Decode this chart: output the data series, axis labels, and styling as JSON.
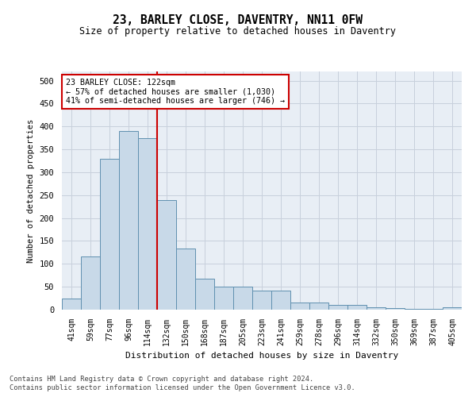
{
  "title1": "23, BARLEY CLOSE, DAVENTRY, NN11 0FW",
  "title2": "Size of property relative to detached houses in Daventry",
  "xlabel": "Distribution of detached houses by size in Daventry",
  "ylabel": "Number of detached properties",
  "categories": [
    "41sqm",
    "59sqm",
    "77sqm",
    "96sqm",
    "114sqm",
    "132sqm",
    "150sqm",
    "168sqm",
    "187sqm",
    "205sqm",
    "223sqm",
    "241sqm",
    "259sqm",
    "278sqm",
    "296sqm",
    "314sqm",
    "332sqm",
    "350sqm",
    "369sqm",
    "387sqm",
    "405sqm"
  ],
  "values": [
    25,
    117,
    330,
    390,
    375,
    240,
    133,
    68,
    50,
    50,
    42,
    42,
    15,
    15,
    10,
    10,
    5,
    3,
    2,
    1,
    6
  ],
  "bar_color": "#c8d9e8",
  "bar_edge_color": "#6090b0",
  "vline_color": "#cc0000",
  "annotation_text": "23 BARLEY CLOSE: 122sqm\n← 57% of detached houses are smaller (1,030)\n41% of semi-detached houses are larger (746) →",
  "annotation_box_color": "#ffffff",
  "annotation_box_edge": "#cc0000",
  "grid_color": "#c8d0dc",
  "background_color": "#e8eef5",
  "footer1": "Contains HM Land Registry data © Crown copyright and database right 2024.",
  "footer2": "Contains public sector information licensed under the Open Government Licence v3.0.",
  "ylim": [
    0,
    520
  ],
  "yticks": [
    0,
    50,
    100,
    150,
    200,
    250,
    300,
    350,
    400,
    450,
    500
  ]
}
